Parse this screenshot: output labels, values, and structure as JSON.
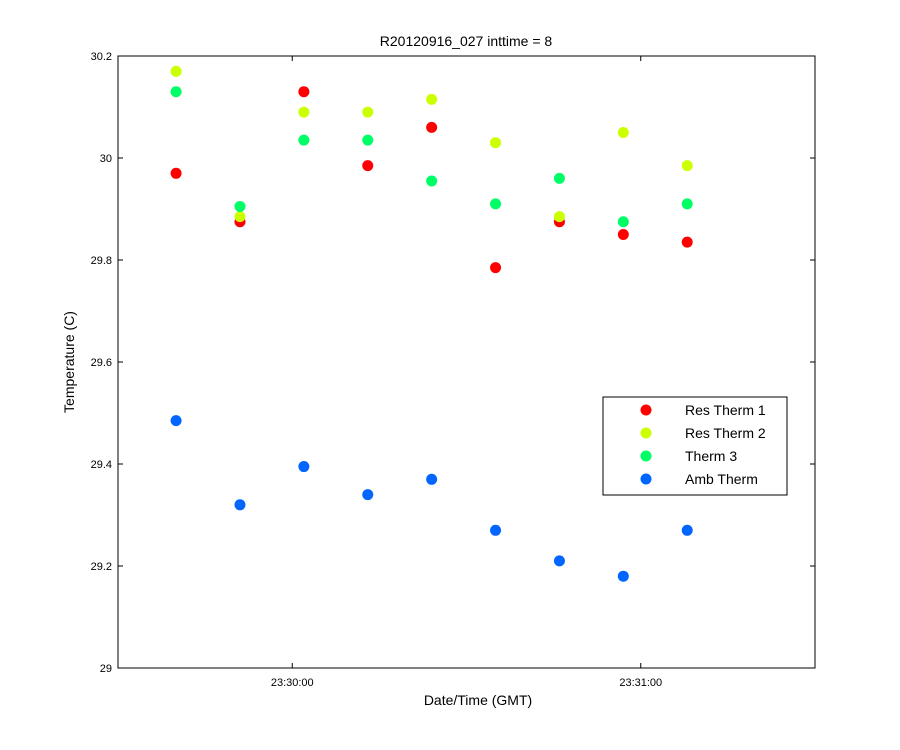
{
  "chart_data": {
    "type": "scatter",
    "title": "R20120916_027 inttime = 8",
    "xlabel": "Date/Time (GMT)",
    "ylabel": "Temperature (C)",
    "xlim": [
      "23:29:30",
      "23:31:30"
    ],
    "ylim": [
      29,
      30.2
    ],
    "xticks": [
      "23:30:00",
      "23:31:00"
    ],
    "yticks": [
      "29",
      "29.2",
      "29.4",
      "29.6",
      "29.8",
      "30",
      "30.2"
    ],
    "x": [
      "23:29:40",
      "23:29:51",
      "23:30:02",
      "23:30:13",
      "23:30:24",
      "23:30:35",
      "23:30:46",
      "23:30:57",
      "23:31:08"
    ],
    "series": [
      {
        "name": "Res Therm 1",
        "color": "#ff0000",
        "values": [
          29.97,
          29.875,
          30.13,
          29.985,
          30.06,
          29.785,
          29.875,
          29.85,
          29.835
        ]
      },
      {
        "name": "Res Therm 2",
        "color": "#ccff00",
        "values": [
          30.17,
          29.885,
          30.09,
          30.09,
          30.115,
          30.03,
          29.885,
          30.05,
          29.985
        ]
      },
      {
        "name": "Therm 3",
        "color": "#00ff66",
        "values": [
          30.13,
          29.905,
          30.035,
          30.035,
          29.955,
          29.91,
          29.96,
          29.875,
          29.91
        ]
      },
      {
        "name": "Amb Therm",
        "color": "#0066ff",
        "values": [
          29.485,
          29.32,
          29.395,
          29.34,
          29.37,
          29.27,
          29.21,
          29.18,
          29.27
        ]
      }
    ],
    "grid": false,
    "legend_position": "right"
  }
}
